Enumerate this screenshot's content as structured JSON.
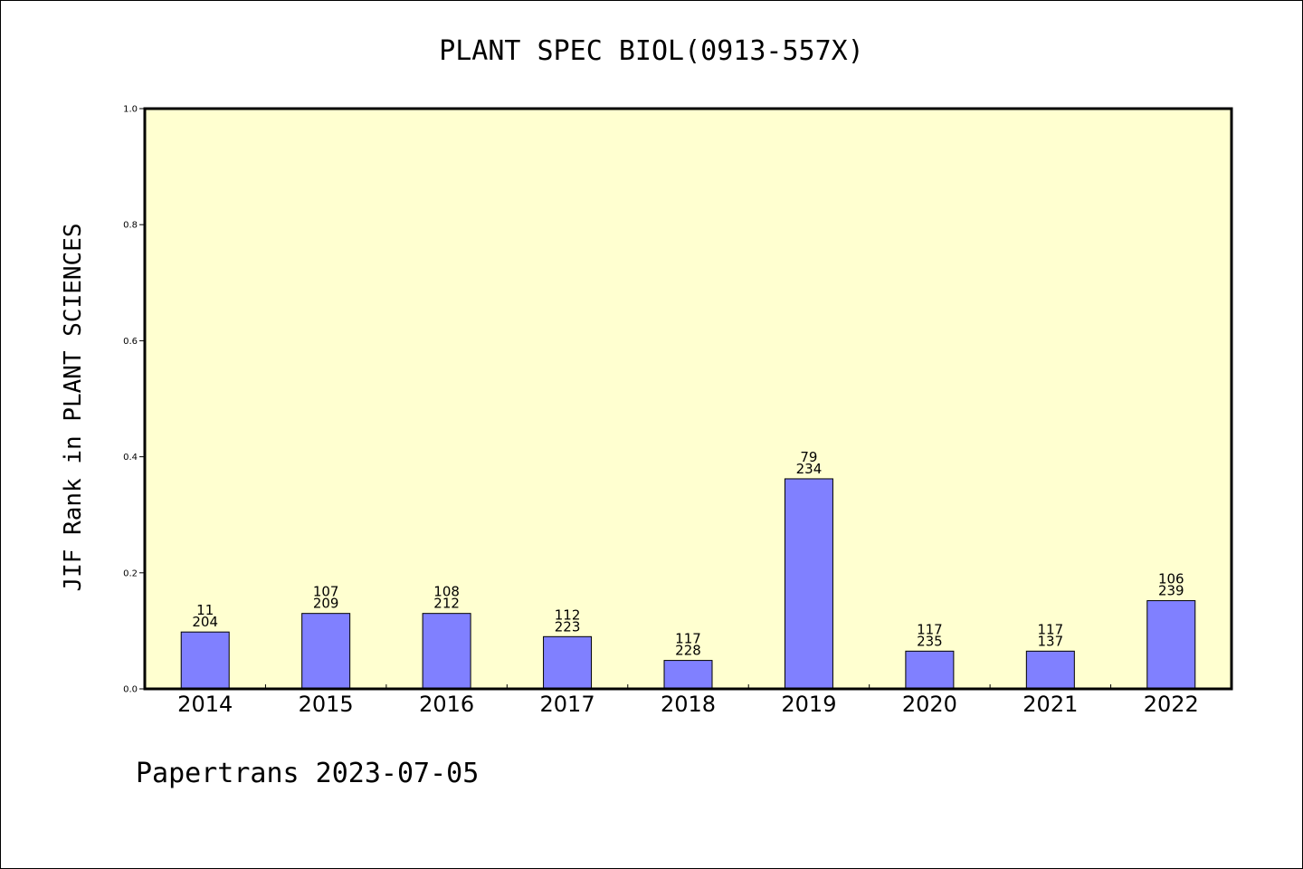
{
  "chart_data": {
    "type": "bar",
    "title": "PLANT SPEC BIOL(0913-557X)",
    "ylabel": "JIF Rank in PLANT SCIENCES",
    "xlabel": "",
    "ylim": [
      0,
      1.0
    ],
    "yticks": [
      "0.0",
      "0.2",
      "0.4",
      "0.6",
      "0.8",
      "1.0"
    ],
    "categories": [
      "2014",
      "2015",
      "2016",
      "2017",
      "2018",
      "2019",
      "2020",
      "2021",
      "2022"
    ],
    "values": [
      0.098,
      0.13,
      0.13,
      0.09,
      0.049,
      0.362,
      0.065,
      0.065,
      0.152
    ],
    "label_top": [
      "11",
      "107",
      "108",
      "112",
      "117",
      "79",
      "117",
      "117",
      "106"
    ],
    "label_bottom": [
      "204",
      "209",
      "212",
      "223",
      "228",
      "234",
      "235",
      "137",
      "239"
    ],
    "colors": {
      "plot_background": "#ffffd0",
      "bar": "#8080ff",
      "bar_edge": "#000000"
    },
    "grid": false,
    "legend": "none"
  },
  "footer": {
    "text": "Papertrans 2023-07-05"
  }
}
